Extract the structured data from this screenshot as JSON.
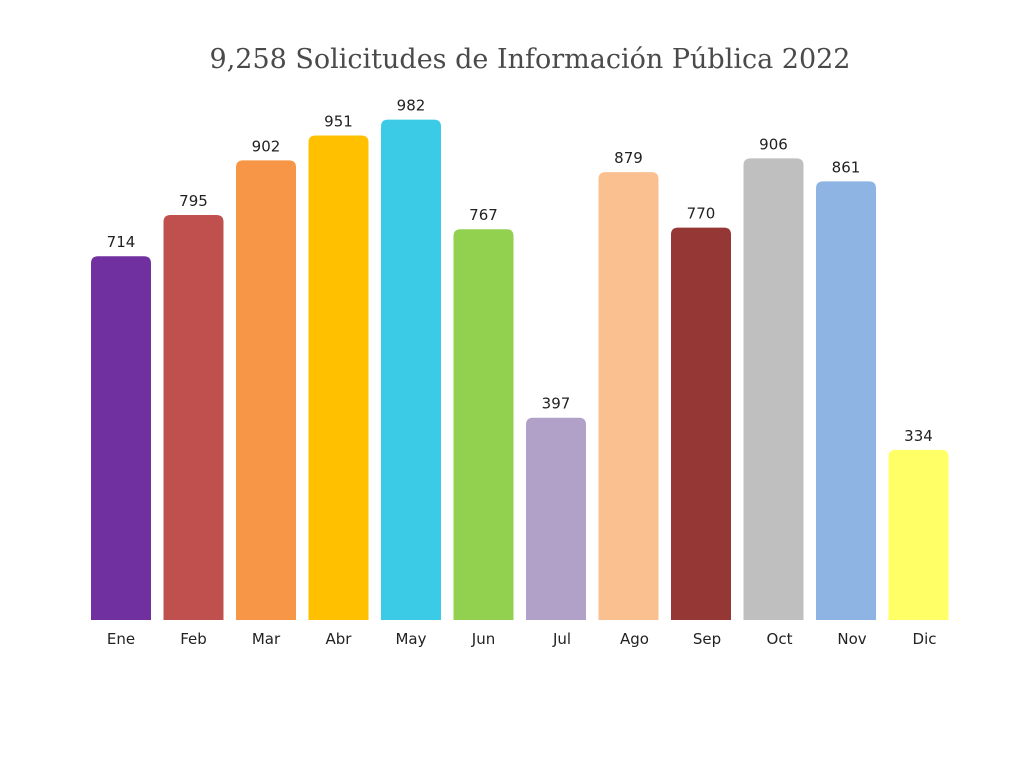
{
  "chart_data": {
    "type": "bar",
    "title": "9,258 Solicitudes de Información Pública 2022",
    "categories": [
      "Ene",
      "Feb",
      "Mar",
      "Abr",
      "May",
      "Jun",
      "Jul",
      "Ago",
      "Sep",
      "Oct",
      "Nov",
      "Dic"
    ],
    "values": [
      714,
      795,
      902,
      951,
      982,
      767,
      397,
      879,
      770,
      906,
      861,
      334
    ],
    "data_labels": [
      "714",
      "795",
      "902",
      "951",
      "982",
      "767",
      "397",
      "879",
      "770",
      "906",
      "861",
      "334"
    ],
    "colors": [
      "#7030a0",
      "#c0504d",
      "#f79646",
      "#ffc000",
      "#3ccbe6",
      "#92d050",
      "#b1a0c7",
      "#fac090",
      "#953735",
      "#bfbfbf",
      "#8eb4e3",
      "#ffff66"
    ],
    "ylim": [
      0,
      1000
    ],
    "grid": false,
    "legend": "none"
  }
}
